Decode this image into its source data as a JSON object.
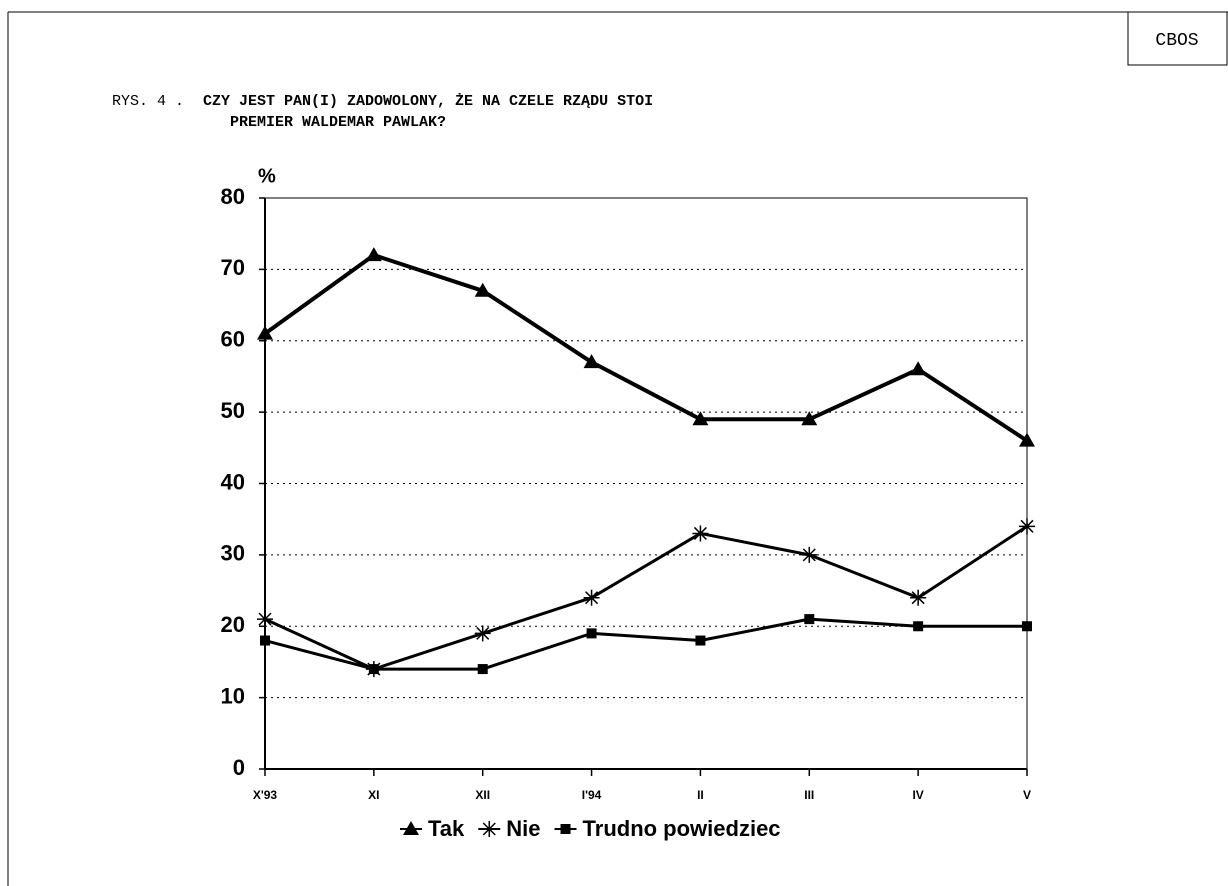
{
  "source": "CBOS",
  "chart_data": {
    "type": "line",
    "figure_label": "RYS. 4 .",
    "title": [
      "CZY JEST PAN(I) ZADOWOLONY, ŻE NA CZELE RZĄDU STOI",
      "PREMIER WALDEMAR PAWLAK?"
    ],
    "ylabel": "%",
    "categories": [
      "X'93",
      "XI",
      "XII",
      "I'94",
      "II",
      "III",
      "IV",
      "V"
    ],
    "series": [
      {
        "name": "Tak",
        "color": "#000000",
        "marker": "triangle",
        "values": [
          61,
          72,
          67,
          57,
          49,
          49,
          56,
          46
        ]
      },
      {
        "name": "Nie",
        "color": "#000000",
        "marker": "asterisk",
        "values": [
          21,
          14,
          19,
          24,
          33,
          30,
          24,
          34
        ]
      },
      {
        "name": "Trudno powiedziec",
        "color": "#000000",
        "marker": "square",
        "values": [
          18,
          14,
          14,
          19,
          18,
          21,
          20,
          20
        ]
      }
    ],
    "ylim": [
      0,
      80
    ],
    "yticks": [
      0,
      10,
      20,
      30,
      40,
      50,
      60,
      70,
      80
    ],
    "grid": true,
    "legend": "bottom"
  }
}
